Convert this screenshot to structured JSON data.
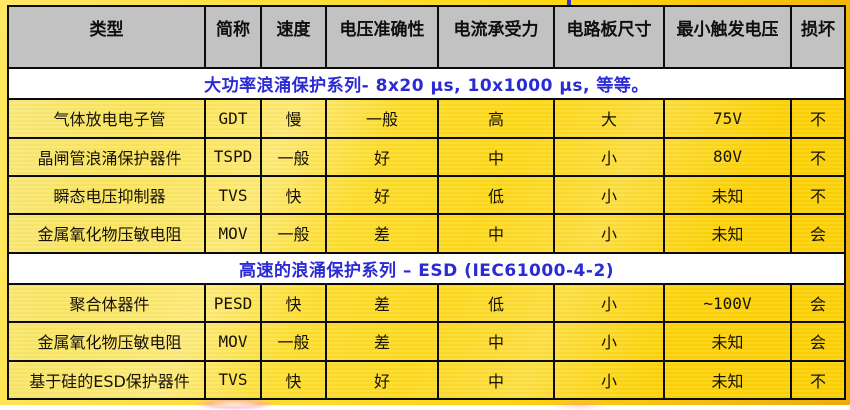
{
  "decor": {
    "top_tick_color": "#3333cc",
    "accent_blue": "#2b2bd5",
    "header_gray": "#c2c2c2",
    "gold_dark": "#eeab0b",
    "yellow_light": "#f9ea7e"
  },
  "table": {
    "columns": [
      {
        "key": "type",
        "label": "类型"
      },
      {
        "key": "abbr",
        "label": "简称"
      },
      {
        "key": "speed",
        "label": "速度"
      },
      {
        "key": "voltage-accuracy",
        "label": "电压准确性"
      },
      {
        "key": "current-capacity",
        "label": "电流承受力"
      },
      {
        "key": "board-size",
        "label": "电路板尺寸"
      },
      {
        "key": "min-trigger-voltage",
        "label": "最小触发电压"
      },
      {
        "key": "damage",
        "label": "损坏"
      }
    ],
    "sections": [
      {
        "title": "大功率浪涌保护系列- 8x20 μs, 10x1000 μs, 等等。",
        "rows": [
          [
            "气体放电电子管",
            "GDT",
            "慢",
            "一般",
            "高",
            "大",
            "75V",
            "不"
          ],
          [
            "晶闸管浪涌保护器件",
            "TSPD",
            "一般",
            "好",
            "中",
            "小",
            "80V",
            "不"
          ],
          [
            "瞬态电压抑制器",
            "TVS",
            "快",
            "好",
            "低",
            "小",
            "未知",
            "不"
          ],
          [
            "金属氧化物压敏电阻",
            "MOV",
            "一般",
            "差",
            "中",
            "小",
            "未知",
            "会"
          ]
        ]
      },
      {
        "title": "高速的浪涌保护系列 – ESD (IEC61000-4-2)",
        "rows": [
          [
            "聚合体器件",
            "PESD",
            "快",
            "差",
            "低",
            "小",
            "~100V",
            "会"
          ],
          [
            "金属氧化物压敏电阻",
            "MOV",
            "一般",
            "差",
            "中",
            "小",
            "未知",
            "会"
          ],
          [
            "基于硅的ESD保护器件",
            "TVS",
            "快",
            "好",
            "中",
            "小",
            "未知",
            "不"
          ]
        ]
      }
    ]
  }
}
